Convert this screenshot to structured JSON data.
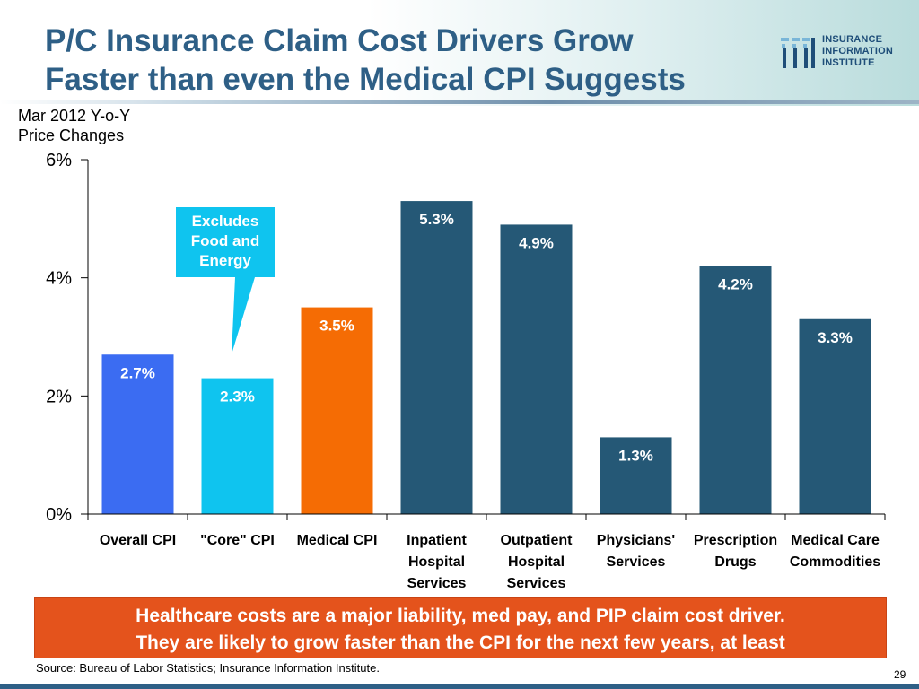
{
  "header": {
    "title_line1": "P/C Insurance Claim Cost Drivers Grow",
    "title_line2": "Faster than even the Medical CPI Suggests"
  },
  "logo": {
    "line1": "INSURANCE",
    "line2": "INFORMATION",
    "line3": "INSTITUTE",
    "icon": "iii-logo-icon"
  },
  "axis_caption": {
    "line1": "Mar 2012 Y-o-Y",
    "line2": "Price Changes"
  },
  "callout": {
    "line1": "Excludes",
    "line2": "Food and",
    "line3": "Energy"
  },
  "banner": {
    "line1": "Healthcare costs are a major liability, med pay, and PIP claim cost driver.",
    "line2": "They are likely to grow faster than the CPI for the next few years, at least"
  },
  "footer": {
    "source": "Source: Bureau of Labor Statistics; Insurance Information Institute.",
    "page_number": "29"
  },
  "colors": {
    "overall": "#3b6cf2",
    "core": "#0fc4ef",
    "medical": "#f56c04",
    "other": "#255876",
    "title": "#2e5f86",
    "banner": "#e4531c"
  },
  "chart_data": {
    "type": "bar",
    "title": "",
    "xlabel": "",
    "ylabel": "Mar 2012 Y-o-Y Price Changes",
    "ylim": [
      0,
      6
    ],
    "yticks": [
      {
        "value": 0,
        "label": "0%"
      },
      {
        "value": 2,
        "label": "2%"
      },
      {
        "value": 4,
        "label": "4%"
      },
      {
        "value": 6,
        "label": "6%"
      }
    ],
    "grid": false,
    "categories": [
      [
        "Overall CPI"
      ],
      [
        "\"Core\" CPI"
      ],
      [
        "Medical CPI"
      ],
      [
        "Inpatient",
        "Hospital",
        "Services"
      ],
      [
        "Outpatient",
        "Hospital",
        "Services"
      ],
      [
        "Physicians'",
        "Services"
      ],
      [
        "Prescription",
        "Drugs"
      ],
      [
        "Medical Care",
        "Commodities"
      ]
    ],
    "values": [
      2.7,
      2.3,
      3.5,
      5.3,
      4.9,
      1.3,
      4.2,
      3.3
    ],
    "data_labels": [
      "2.7%",
      "2.3%",
      "3.5%",
      "5.3%",
      "4.9%",
      "1.3%",
      "4.2%",
      "3.3%"
    ],
    "bar_colors": [
      "#3b6cf2",
      "#0fc4ef",
      "#f56c04",
      "#255876",
      "#255876",
      "#255876",
      "#255876",
      "#255876"
    ]
  }
}
